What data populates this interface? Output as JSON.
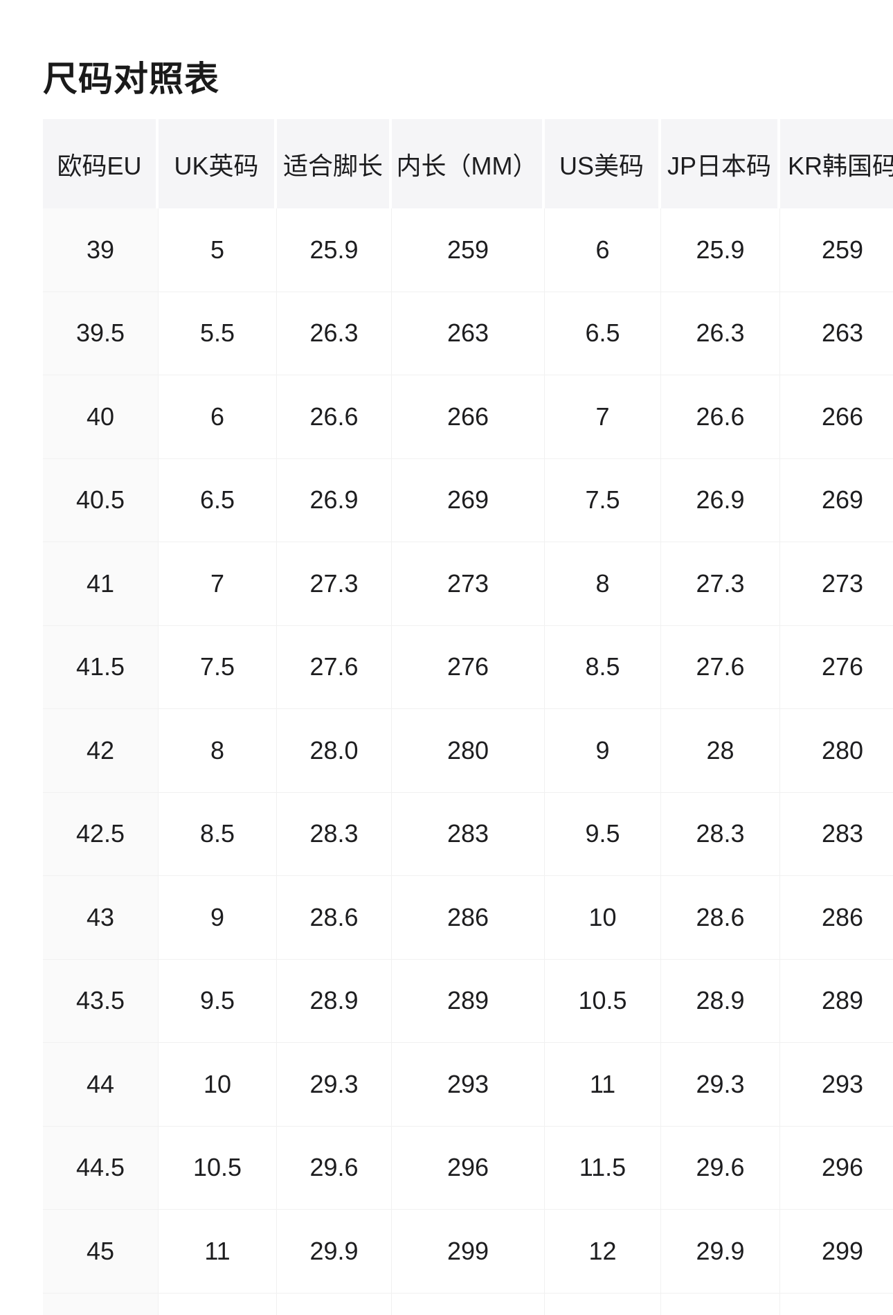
{
  "page": {
    "title": "尺码对照表"
  },
  "colors": {
    "page_bg": "#ffffff",
    "header_bg": "#f5f5f7",
    "first_col_bg": "#fafafa",
    "cell_border": "#f1f1f1",
    "text": "#1d1d1f"
  },
  "table": {
    "columns": [
      "欧码EU",
      "UK英码",
      "适合脚长",
      "内长（MM）",
      "US美码",
      "JP日本码",
      "KR韩国码"
    ],
    "rows": [
      [
        "39",
        "5",
        "25.9",
        "259",
        "6",
        "25.9",
        "259"
      ],
      [
        "39.5",
        "5.5",
        "26.3",
        "263",
        "6.5",
        "26.3",
        "263"
      ],
      [
        "40",
        "6",
        "26.6",
        "266",
        "7",
        "26.6",
        "266"
      ],
      [
        "40.5",
        "6.5",
        "26.9",
        "269",
        "7.5",
        "26.9",
        "269"
      ],
      [
        "41",
        "7",
        "27.3",
        "273",
        "8",
        "27.3",
        "273"
      ],
      [
        "41.5",
        "7.5",
        "27.6",
        "276",
        "8.5",
        "27.6",
        "276"
      ],
      [
        "42",
        "8",
        "28.0",
        "280",
        "9",
        "28",
        "280"
      ],
      [
        "42.5",
        "8.5",
        "28.3",
        "283",
        "9.5",
        "28.3",
        "283"
      ],
      [
        "43",
        "9",
        "28.6",
        "286",
        "10",
        "28.6",
        "286"
      ],
      [
        "43.5",
        "9.5",
        "28.9",
        "289",
        "10.5",
        "28.9",
        "289"
      ],
      [
        "44",
        "10",
        "29.3",
        "293",
        "11",
        "29.3",
        "293"
      ],
      [
        "44.5",
        "10.5",
        "29.6",
        "296",
        "11.5",
        "29.6",
        "296"
      ],
      [
        "45",
        "11",
        "29.9",
        "299",
        "12",
        "29.9",
        "299"
      ]
    ]
  }
}
